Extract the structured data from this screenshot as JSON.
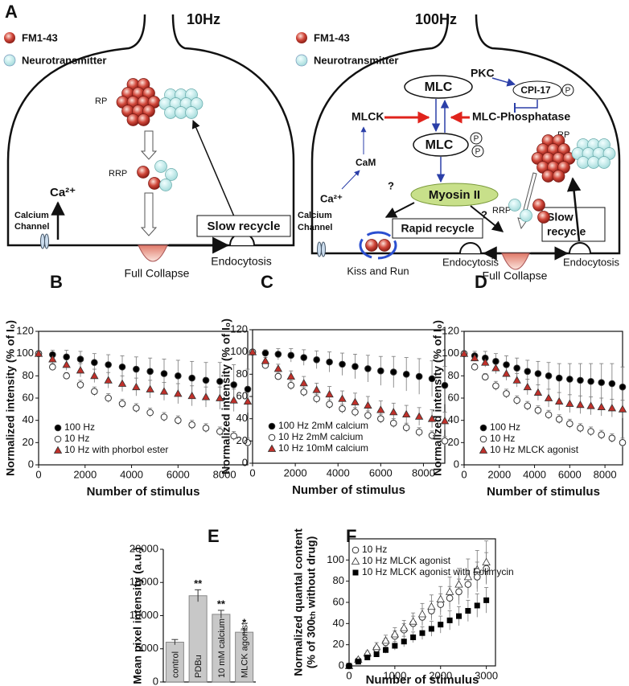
{
  "diagram": {
    "panel": "A",
    "left": {
      "title": "10Hz",
      "fm": "FM1-43",
      "nt": "Neurotransmitter",
      "rp": "RP",
      "rrp": "RRP",
      "ca": "Ca²⁺",
      "channel": [
        "Calcium",
        "Channel"
      ],
      "slow": "Slow recycle",
      "collapse": "Full Collapse",
      "endo": "Endocytosis"
    },
    "right": {
      "title": "100Hz",
      "fm": "FM1-43",
      "nt": "Neurotransmitter",
      "pkc": "PKC",
      "mlc_top": "MLC",
      "cpi": "CPI-17",
      "p": "P",
      "mlck": "MLCK",
      "phosphatase": "MLC-Phosphatase",
      "mlc_bottom": "MLC",
      "cam": "CaM",
      "rp": "RP",
      "myosin": "Myosin II",
      "rrp": "RRP",
      "q": "?",
      "ca": "Ca²⁺",
      "channel": [
        "Calcium",
        "Channel"
      ],
      "rapid": "Rapid recycle",
      "slow": [
        "Slow",
        "recycle"
      ],
      "kiss": "Kiss and Run",
      "endo_left": "Endocytosis",
      "collapse": "Full Collapse",
      "endo_right": "Endocytosis"
    }
  },
  "chart_data": [
    {
      "type": "scatter",
      "panel": "B",
      "xlabel": "Number of stimulus",
      "ylabel": "Normalized intensity (% of I₀)",
      "x": [
        0,
        600,
        1200,
        1800,
        2400,
        3000,
        3600,
        4200,
        4800,
        5400,
        6000,
        6600,
        7200,
        7800,
        8400,
        9000
      ],
      "xlim": [
        0,
        9000
      ],
      "xticks": [
        0,
        2000,
        4000,
        6000,
        8000
      ],
      "ylim": [
        0,
        120
      ],
      "yticks": [
        0,
        20,
        40,
        60,
        80,
        100,
        120
      ],
      "legend": "lower left",
      "series": [
        {
          "name": "100 Hz",
          "color": "#000000",
          "marker": "circle-filled",
          "values": [
            100,
            99,
            97,
            95,
            92,
            90,
            88,
            86,
            84,
            82,
            80,
            78,
            76,
            75,
            72,
            68
          ],
          "errors": [
            2,
            4,
            6,
            7,
            8,
            9,
            10,
            11,
            12,
            13,
            14,
            15,
            16,
            17,
            18,
            18
          ]
        },
        {
          "name": "10 Hz",
          "color": "#ffffff",
          "marker": "circle-open",
          "values": [
            100,
            88,
            80,
            72,
            66,
            60,
            55,
            51,
            47,
            43,
            40,
            36,
            33,
            30,
            26,
            20
          ],
          "errors": [
            2,
            3,
            3,
            4,
            4,
            4,
            4,
            4,
            4,
            4,
            4,
            4,
            4,
            4,
            4,
            4
          ]
        },
        {
          "name": "10 Hz with phorbol ester",
          "color": "#c0302a",
          "marker": "triangle",
          "values": [
            100,
            95,
            90,
            85,
            80,
            76,
            73,
            70,
            68,
            66,
            64,
            62,
            61,
            60,
            58,
            57
          ],
          "errors": [
            2,
            4,
            5,
            6,
            6,
            7,
            7,
            8,
            8,
            8,
            9,
            9,
            9,
            10,
            10,
            10
          ]
        }
      ]
    },
    {
      "type": "scatter",
      "panel": "C",
      "xlabel": "Number of stimulus",
      "ylabel": "Normalized intensity (% of I₀)",
      "x": [
        0,
        600,
        1200,
        1800,
        2400,
        3000,
        3600,
        4200,
        4800,
        5400,
        6000,
        6600,
        7200,
        7800,
        8400,
        9000
      ],
      "xlim": [
        0,
        9000
      ],
      "xticks": [
        0,
        2000,
        4000,
        6000,
        8000
      ],
      "ylim": [
        0,
        120
      ],
      "yticks": [
        0,
        20,
        40,
        60,
        80,
        100,
        120
      ],
      "legend": "lower left",
      "series": [
        {
          "name": "100 Hz 2mM calcium",
          "color": "#000000",
          "marker": "circle-filled",
          "values": [
            100,
            99,
            98,
            97,
            95,
            93,
            91,
            89,
            87,
            85,
            83,
            82,
            80,
            78,
            76,
            70
          ],
          "errors": [
            2,
            3,
            5,
            6,
            7,
            8,
            9,
            10,
            11,
            12,
            13,
            14,
            15,
            16,
            16,
            17
          ]
        },
        {
          "name": "10 Hz 2mM calcium",
          "color": "#ffffff",
          "marker": "circle-open",
          "values": [
            100,
            88,
            78,
            70,
            64,
            58,
            53,
            49,
            46,
            43,
            40,
            36,
            32,
            28,
            25,
            20
          ],
          "errors": [
            2,
            3,
            3,
            4,
            4,
            4,
            4,
            4,
            4,
            4,
            4,
            4,
            4,
            4,
            4,
            4
          ]
        },
        {
          "name": "10 Hz 10mM calcium",
          "color": "#c0302a",
          "marker": "triangle",
          "values": [
            100,
            92,
            85,
            78,
            72,
            66,
            62,
            58,
            55,
            52,
            48,
            46,
            44,
            42,
            40,
            38
          ],
          "errors": [
            2,
            3,
            4,
            5,
            6,
            6,
            7,
            7,
            8,
            8,
            8,
            8,
            8,
            8,
            8,
            8
          ]
        }
      ]
    },
    {
      "type": "scatter",
      "panel": "D",
      "xlabel": "Number of stimulus",
      "ylabel": "Normalized intensity (% of I₀)",
      "x": [
        0,
        600,
        1200,
        1800,
        2400,
        3000,
        3600,
        4200,
        4800,
        5400,
        6000,
        6600,
        7200,
        7800,
        8400,
        9000
      ],
      "xlim": [
        0,
        9000
      ],
      "xticks": [
        0,
        2000,
        4000,
        6000,
        8000
      ],
      "ylim": [
        0,
        120
      ],
      "yticks": [
        0,
        20,
        40,
        60,
        80,
        100,
        120
      ],
      "legend": "lower left",
      "series": [
        {
          "name": "100 Hz",
          "color": "#000000",
          "marker": "circle-filled",
          "values": [
            100,
            98,
            96,
            93,
            90,
            87,
            84,
            82,
            80,
            78,
            77,
            76,
            75,
            74,
            73,
            70
          ],
          "errors": [
            2,
            4,
            6,
            7,
            8,
            9,
            10,
            11,
            12,
            13,
            14,
            15,
            16,
            17,
            18,
            18
          ]
        },
        {
          "name": "10 Hz",
          "color": "#ffffff",
          "marker": "circle-open",
          "values": [
            100,
            88,
            79,
            71,
            64,
            58,
            53,
            49,
            45,
            41,
            37,
            33,
            30,
            27,
            24,
            20
          ],
          "errors": [
            2,
            3,
            3,
            4,
            4,
            4,
            4,
            4,
            4,
            4,
            4,
            4,
            4,
            4,
            4,
            4
          ]
        },
        {
          "name": "10 Hz MLCK agonist",
          "color": "#c0302a",
          "marker": "triangle",
          "values": [
            100,
            96,
            92,
            87,
            82,
            76,
            70,
            65,
            60,
            57,
            55,
            54,
            53,
            52,
            51,
            50
          ],
          "errors": [
            2,
            3,
            4,
            5,
            6,
            6,
            7,
            7,
            8,
            8,
            8,
            8,
            8,
            8,
            8,
            8
          ]
        }
      ]
    },
    {
      "type": "bar",
      "panel": "E",
      "ylabel": "Mean pixel intensity (a.u.)",
      "color": "#c8c8c8",
      "categories": [
        "control",
        "PDBu",
        "10 mM calcium",
        "MLCK agonist"
      ],
      "values": [
        6000,
        13000,
        10200,
        7500
      ],
      "errors": [
        400,
        900,
        600,
        500
      ],
      "ylim": [
        0,
        20000
      ],
      "yticks": [
        0,
        5000,
        10000,
        15000,
        20000
      ],
      "annotations": [
        {
          "category": "PDBu",
          "text": "**"
        },
        {
          "category": "10 mM calcium",
          "text": "**"
        },
        {
          "category": "MLCK agonist",
          "text": "*"
        }
      ]
    },
    {
      "type": "scatter",
      "panel": "F",
      "xlabel": "Number of stimulus",
      "ylabel": [
        "Normalized quantal content",
        "(% of 300ₜₕ without drug)"
      ],
      "x": [
        0,
        200,
        400,
        600,
        800,
        1000,
        1200,
        1400,
        1600,
        1800,
        2000,
        2200,
        2400,
        2600,
        2800,
        3000
      ],
      "xlim": [
        0,
        3200
      ],
      "xticks": [
        0,
        1000,
        2000,
        3000
      ],
      "ylim": [
        0,
        120
      ],
      "yticks": [
        0,
        20,
        40,
        60,
        80,
        100
      ],
      "legend": "upper left",
      "series": [
        {
          "name": "10 Hz",
          "color": "#ffffff",
          "marker": "circle-open",
          "values": [
            0,
            5,
            10,
            16,
            22,
            28,
            34,
            40,
            46,
            52,
            58,
            64,
            70,
            77,
            84,
            92
          ],
          "errors": [
            0,
            1,
            2,
            3,
            4,
            5,
            6,
            7,
            8,
            9,
            10,
            11,
            12,
            13,
            14,
            15
          ]
        },
        {
          "name": "10 Hz MLCK agonist",
          "color": "#ffffff",
          "marker": "triangle-open",
          "values": [
            0,
            6,
            12,
            18,
            24,
            30,
            36,
            42,
            49,
            56,
            63,
            70,
            77,
            84,
            91,
            98
          ],
          "errors": [
            0,
            1,
            2,
            4,
            5,
            6,
            7,
            8,
            10,
            11,
            12,
            14,
            15,
            17,
            18,
            20
          ]
        },
        {
          "name": "10 Hz MLCK agonist with Folimycin",
          "color": "#000000",
          "marker": "square",
          "values": [
            0,
            4,
            8,
            11,
            15,
            19,
            23,
            27,
            31,
            35,
            39,
            43,
            47,
            52,
            57,
            62
          ],
          "errors": [
            0,
            1,
            2,
            2,
            3,
            4,
            5,
            5,
            6,
            7,
            8,
            9,
            9,
            10,
            11,
            12
          ]
        }
      ]
    }
  ]
}
